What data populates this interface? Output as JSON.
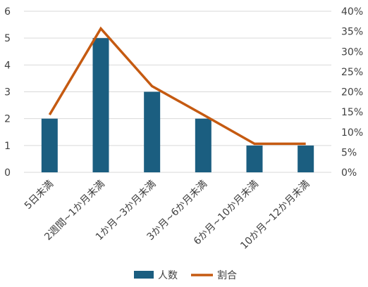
{
  "chart_data": {
    "type": "bar",
    "categories": [
      "5日未満",
      "2週間~1か月未満",
      "1か月~3か月未満",
      "3か月~6か月未満",
      "6か月~10か月未満",
      "10か月~12か月未満"
    ],
    "series": [
      {
        "name": "人数",
        "type": "bar",
        "axis": "left",
        "color": "#1b5e80",
        "values": [
          2,
          5,
          3,
          2,
          1,
          1
        ]
      },
      {
        "name": "割合",
        "type": "line",
        "axis": "right",
        "color": "#c55a11",
        "values": [
          14.3,
          35.7,
          21.4,
          14.3,
          7.1,
          7.1
        ]
      }
    ],
    "y_left": {
      "min": 0,
      "max": 6,
      "ticks": [
        "0",
        "1",
        "2",
        "3",
        "4",
        "5",
        "6"
      ]
    },
    "y_right": {
      "min": 0,
      "max": 40,
      "unit": "%",
      "ticks": [
        "0%",
        "5%",
        "10%",
        "15%",
        "20%",
        "25%",
        "30%",
        "35%",
        "40%"
      ]
    },
    "grid": true,
    "legend_position": "bottom",
    "title": "",
    "xlabel": "",
    "ylabel": ""
  }
}
